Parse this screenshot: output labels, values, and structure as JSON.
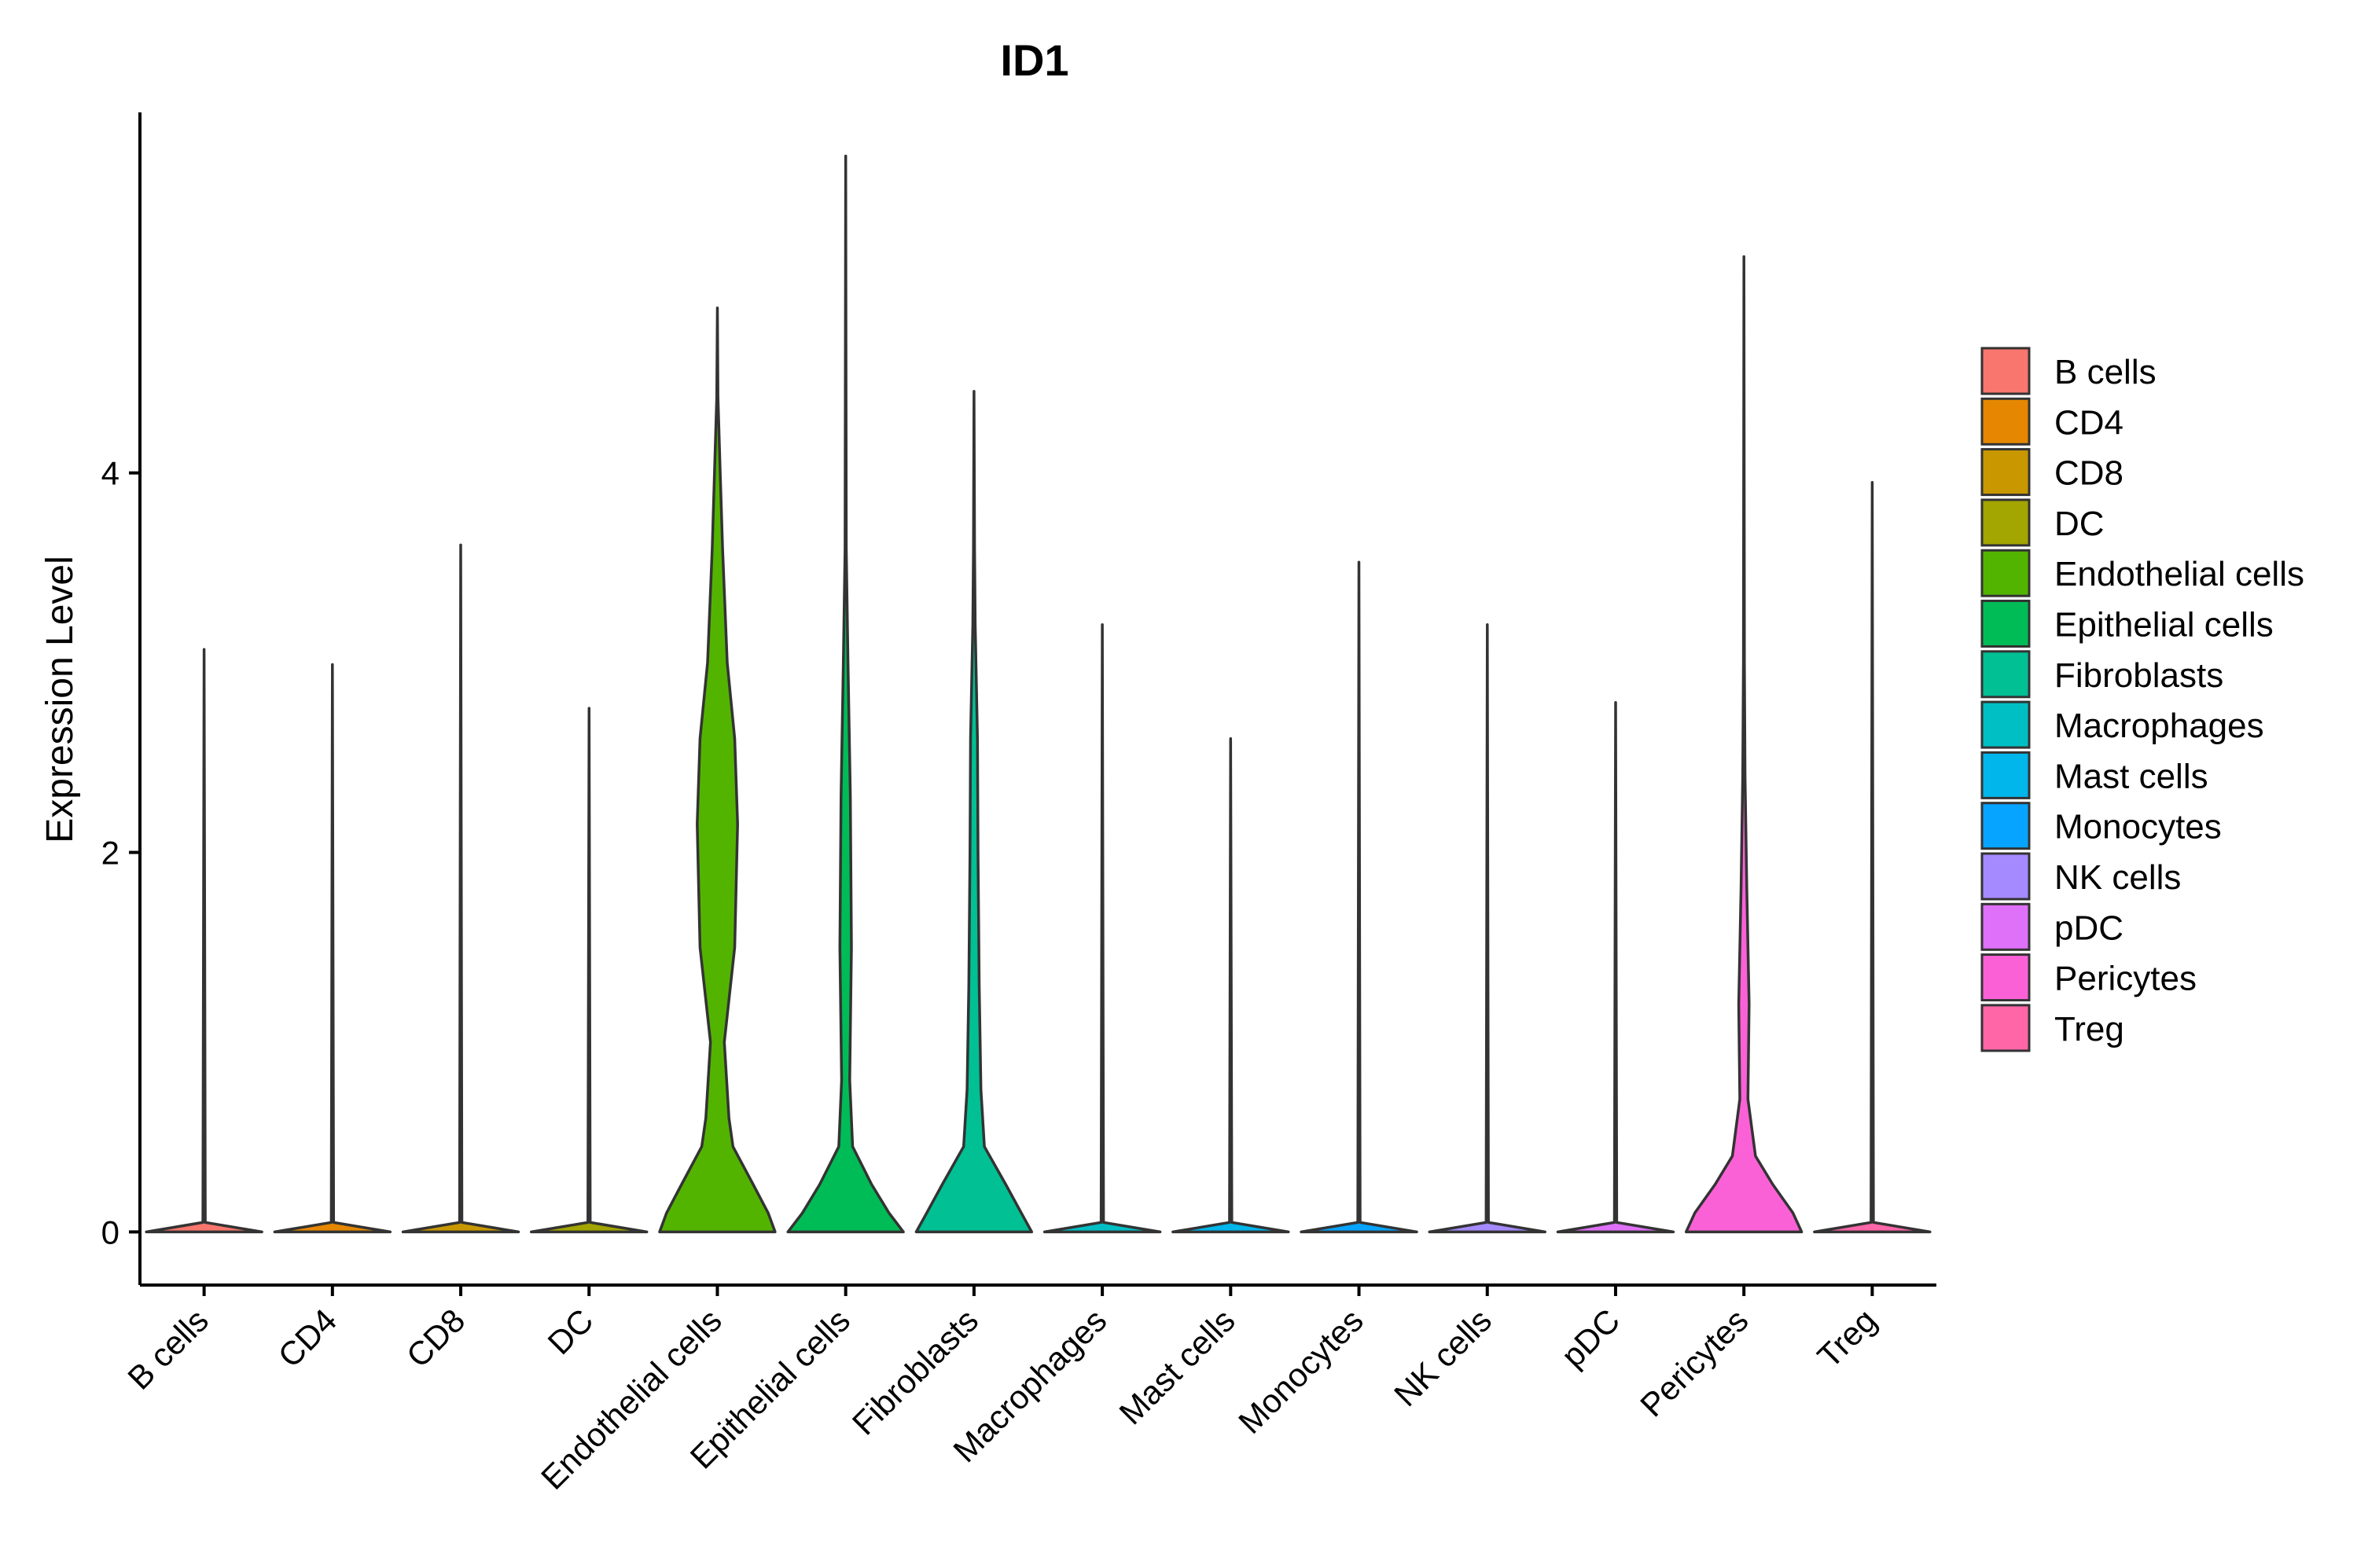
{
  "chart_data": {
    "type": "violin",
    "title": "ID1",
    "xlabel": "",
    "ylabel": "Expression Level",
    "ylim": [
      -0.28,
      5.9
    ],
    "yticks": [
      0,
      2,
      4
    ],
    "grid": false,
    "legend": {
      "placement": "right",
      "entries": [
        {
          "label": "B cells",
          "color": "#F8766D"
        },
        {
          "label": "CD4",
          "color": "#E58700"
        },
        {
          "label": "CD8",
          "color": "#C99800"
        },
        {
          "label": "DC",
          "color": "#A3A500"
        },
        {
          "label": "Endothelial cells",
          "color": "#53B400"
        },
        {
          "label": "Epithelial cells",
          "color": "#00BC56"
        },
        {
          "label": "Fibroblasts",
          "color": "#00C094"
        },
        {
          "label": "Macrophages",
          "color": "#00BFC4"
        },
        {
          "label": "Mast cells",
          "color": "#00B6EB"
        },
        {
          "label": "Monocytes",
          "color": "#06A4FF"
        },
        {
          "label": "NK cells",
          "color": "#A58AFF"
        },
        {
          "label": "pDC",
          "color": "#DF70F8"
        },
        {
          "label": "Pericytes",
          "color": "#FB61D7"
        },
        {
          "label": "Treg",
          "color": "#FF66A8"
        }
      ]
    },
    "categories": [
      "B cells",
      "CD4",
      "CD8",
      "DC",
      "Endothelial cells",
      "Epithelial cells",
      "Fibroblasts",
      "Macrophages",
      "Mast cells",
      "Monocytes",
      "NK cells",
      "pDC",
      "Pericytes",
      "Treg"
    ],
    "series": [
      {
        "category": "B cells",
        "color": "#F8766D",
        "max": 3.07,
        "density": [
          [
            0,
            1.0
          ],
          [
            0.05,
            0.02
          ],
          [
            3.07,
            0
          ]
        ]
      },
      {
        "category": "CD4",
        "color": "#E58700",
        "max": 2.99,
        "density": [
          [
            0,
            1.0
          ],
          [
            0.05,
            0.02
          ],
          [
            2.99,
            0
          ]
        ]
      },
      {
        "category": "CD8",
        "color": "#C99800",
        "max": 3.62,
        "density": [
          [
            0,
            1.0
          ],
          [
            0.05,
            0.02
          ],
          [
            3.62,
            0
          ]
        ]
      },
      {
        "category": "DC",
        "color": "#A3A500",
        "max": 2.76,
        "density": [
          [
            0,
            1.0
          ],
          [
            0.05,
            0.02
          ],
          [
            2.76,
            0
          ]
        ]
      },
      {
        "category": "Endothelial cells",
        "color": "#53B400",
        "max": 4.87,
        "density": [
          [
            0,
            1.0
          ],
          [
            0.1,
            0.88
          ],
          [
            0.25,
            0.62
          ],
          [
            0.45,
            0.27
          ],
          [
            0.6,
            0.2
          ],
          [
            1.0,
            0.12
          ],
          [
            1.5,
            0.3
          ],
          [
            2.15,
            0.35
          ],
          [
            2.6,
            0.3
          ],
          [
            3.0,
            0.17
          ],
          [
            3.6,
            0.09
          ],
          [
            4.0,
            0.05
          ],
          [
            4.4,
            0.01
          ],
          [
            4.87,
            0
          ]
        ]
      },
      {
        "category": "Epithelial cells",
        "color": "#00BC56",
        "max": 5.67,
        "density": [
          [
            0,
            1.0
          ],
          [
            0.1,
            0.75
          ],
          [
            0.25,
            0.45
          ],
          [
            0.45,
            0.12
          ],
          [
            0.8,
            0.07
          ],
          [
            1.5,
            0.1
          ],
          [
            2.3,
            0.08
          ],
          [
            3.0,
            0.04
          ],
          [
            3.6,
            0.01
          ],
          [
            5.67,
            0
          ]
        ]
      },
      {
        "category": "Fibroblasts",
        "color": "#00C094",
        "max": 4.43,
        "density": [
          [
            0,
            1.0
          ],
          [
            0.1,
            0.82
          ],
          [
            0.25,
            0.55
          ],
          [
            0.45,
            0.18
          ],
          [
            0.75,
            0.12
          ],
          [
            1.3,
            0.09
          ],
          [
            2.0,
            0.07
          ],
          [
            2.6,
            0.06
          ],
          [
            3.2,
            0.02
          ],
          [
            3.6,
            0.01
          ],
          [
            4.43,
            0
          ]
        ]
      },
      {
        "category": "Macrophages",
        "color": "#00BFC4",
        "max": 3.2,
        "density": [
          [
            0,
            1.0
          ],
          [
            0.05,
            0.02
          ],
          [
            3.2,
            0
          ]
        ]
      },
      {
        "category": "Mast cells",
        "color": "#00B6EB",
        "max": 2.6,
        "density": [
          [
            0,
            1.0
          ],
          [
            0.05,
            0.02
          ],
          [
            2.6,
            0
          ]
        ]
      },
      {
        "category": "Monocytes",
        "color": "#06A4FF",
        "max": 3.53,
        "density": [
          [
            0,
            1.0
          ],
          [
            0.05,
            0.02
          ],
          [
            3.53,
            0
          ]
        ]
      },
      {
        "category": "NK cells",
        "color": "#A58AFF",
        "max": 3.2,
        "density": [
          [
            0,
            1.0
          ],
          [
            0.05,
            0.02
          ],
          [
            3.2,
            0
          ]
        ]
      },
      {
        "category": "pDC",
        "color": "#DF70F8",
        "max": 2.79,
        "density": [
          [
            0,
            1.0
          ],
          [
            0.05,
            0.02
          ],
          [
            2.79,
            0
          ]
        ]
      },
      {
        "category": "Pericytes",
        "color": "#FB61D7",
        "max": 5.14,
        "density": [
          [
            0,
            1.0
          ],
          [
            0.1,
            0.85
          ],
          [
            0.25,
            0.5
          ],
          [
            0.4,
            0.2
          ],
          [
            0.7,
            0.07
          ],
          [
            1.2,
            0.09
          ],
          [
            1.8,
            0.05
          ],
          [
            2.4,
            0.02
          ],
          [
            3.0,
            0.008
          ],
          [
            5.14,
            0
          ]
        ]
      },
      {
        "category": "Treg",
        "color": "#FF66A8",
        "max": 3.95,
        "density": [
          [
            0,
            1.0
          ],
          [
            0.05,
            0.02
          ],
          [
            3.95,
            0
          ]
        ]
      }
    ]
  }
}
